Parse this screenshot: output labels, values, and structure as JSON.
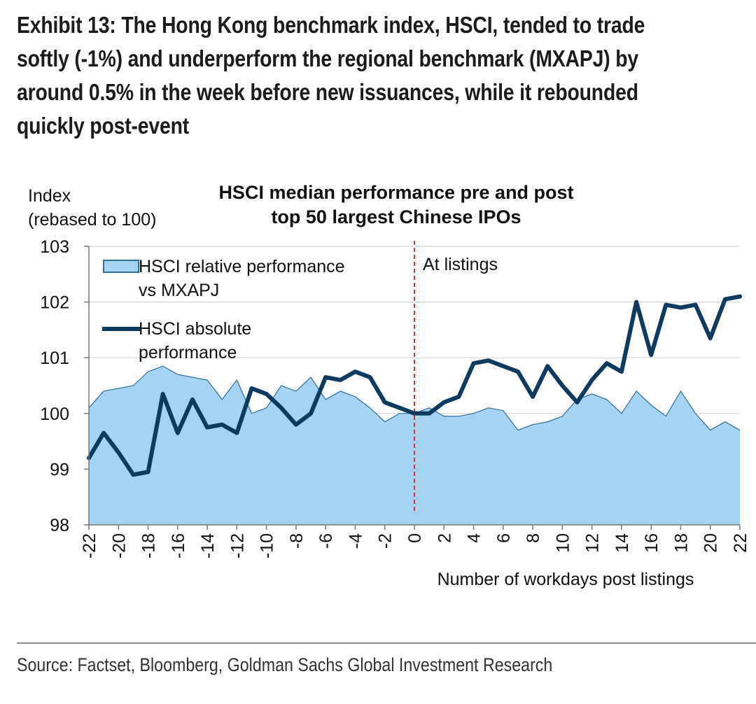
{
  "exhibit_title": "Exhibit 13: The Hong Kong benchmark index, HSCI, tended to trade softly (-1%) and underperform the regional benchmark (MXAPJ) by around 0.5% in the week before new issuances, while it rebounded quickly post-event",
  "source": "Source: Factset, Bloomberg, Goldman Sachs Global Investment Research",
  "chart_data": {
    "type": "area",
    "title_lines": [
      "HSCI median performance pre and post",
      "top 50 largest Chinese IPOs"
    ],
    "ylabel_lines": [
      "Index",
      "(rebased to 100)"
    ],
    "xlabel": "Number of workdays post listings",
    "ylim": [
      98,
      103
    ],
    "yticks": [
      "98",
      "99",
      "100",
      "101",
      "102",
      "103"
    ],
    "xlim": [
      -22,
      22
    ],
    "xticks": [
      "-22",
      "-20",
      "-18",
      "-16",
      "-14",
      "-12",
      "-10",
      "-8",
      "-6",
      "-4",
      "-2",
      "0",
      "2",
      "4",
      "6",
      "8",
      "10",
      "12",
      "14",
      "16",
      "18",
      "20",
      "22"
    ],
    "grid": true,
    "legend_position": "top-left",
    "annotation": {
      "x": 0,
      "label": "At listings"
    },
    "x": [
      -22,
      -21,
      -20,
      -19,
      -18,
      -17,
      -16,
      -15,
      -14,
      -13,
      -12,
      -11,
      -10,
      -9,
      -8,
      -7,
      -6,
      -5,
      -4,
      -3,
      -2,
      -1,
      0,
      1,
      2,
      3,
      4,
      5,
      6,
      7,
      8,
      9,
      10,
      11,
      12,
      13,
      14,
      15,
      16,
      17,
      18,
      19,
      20,
      21,
      22
    ],
    "series": [
      {
        "name_lines": [
          "HSCI relative performance",
          "vs MXAPJ"
        ],
        "style": "area",
        "color": "#a6d3f2",
        "edge_color": "#2f6f9a",
        "values": [
          100.1,
          100.4,
          100.45,
          100.5,
          100.75,
          100.85,
          100.7,
          100.65,
          100.6,
          100.25,
          100.6,
          100.0,
          100.1,
          100.5,
          100.4,
          100.65,
          100.25,
          100.4,
          100.3,
          100.1,
          99.85,
          100.0,
          100.0,
          100.1,
          99.95,
          99.95,
          100.0,
          100.1,
          100.05,
          99.7,
          99.8,
          99.85,
          99.95,
          100.25,
          100.35,
          100.25,
          100.0,
          100.4,
          100.15,
          99.95,
          100.4,
          100.0,
          99.7,
          99.85,
          99.7
        ]
      },
      {
        "name_lines": [
          "HSCI absolute",
          "performance"
        ],
        "style": "line",
        "color": "#0e3a5f",
        "values": [
          99.2,
          99.65,
          99.3,
          98.9,
          98.95,
          100.35,
          99.65,
          100.25,
          99.75,
          99.8,
          99.65,
          100.45,
          100.35,
          100.1,
          99.8,
          100.0,
          100.65,
          100.6,
          100.75,
          100.65,
          100.2,
          100.1,
          100.0,
          100.0,
          100.2,
          100.3,
          100.9,
          100.95,
          100.85,
          100.75,
          100.3,
          100.85,
          100.5,
          100.2,
          100.6,
          100.9,
          100.75,
          102.0,
          101.05,
          101.95,
          101.9,
          101.95,
          101.35,
          102.05,
          102.1
        ]
      }
    ]
  }
}
